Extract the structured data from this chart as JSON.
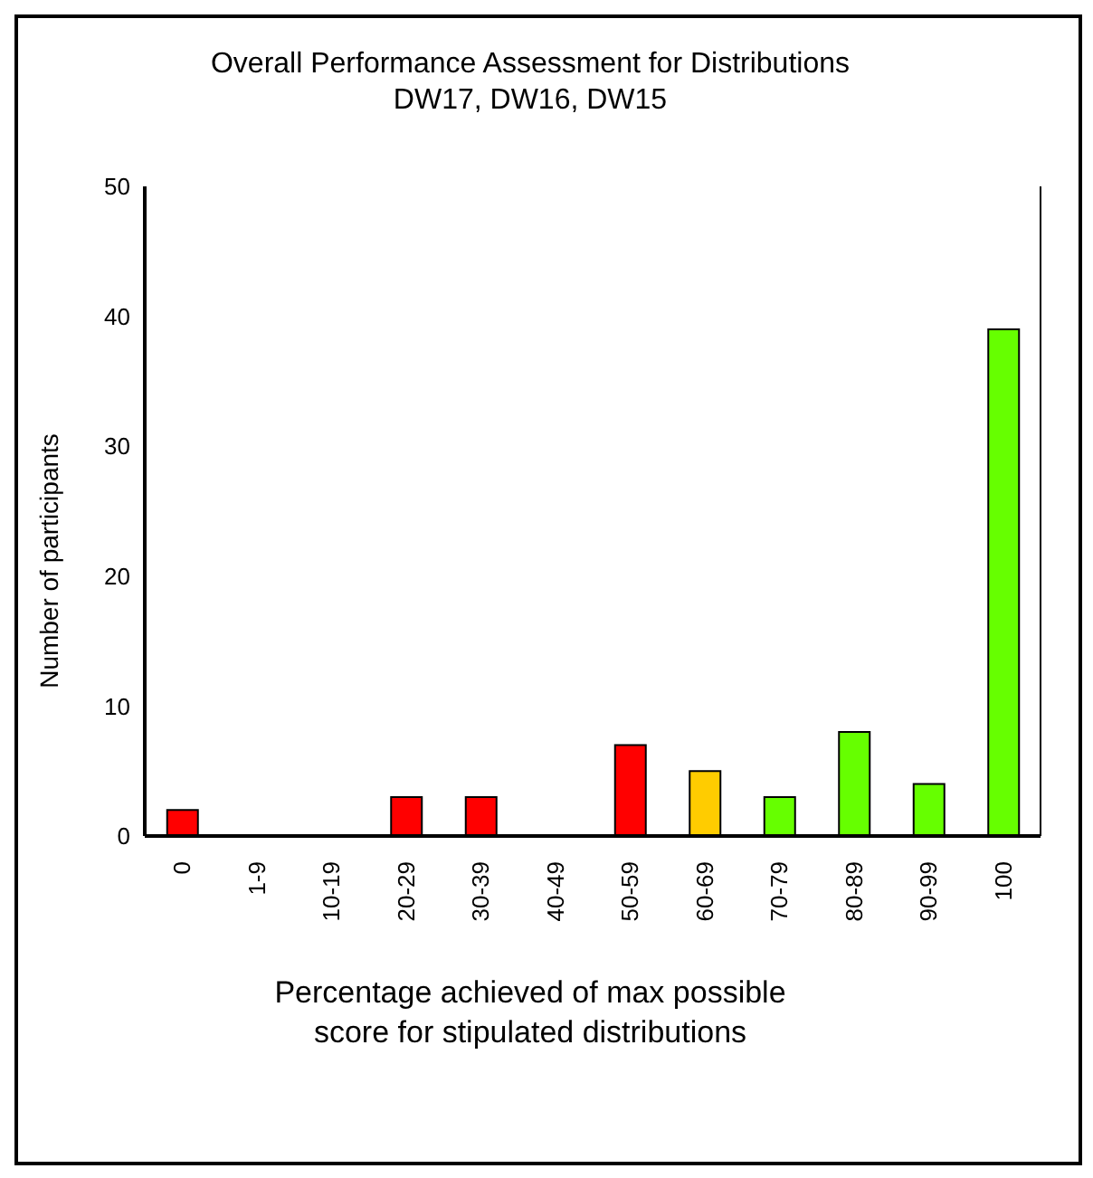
{
  "chart_data": {
    "type": "bar",
    "title": "Overall Performance Assessment for Distributions\nDW17, DW16, DW15",
    "xlabel": "Percentage achieved of max possible\nscore for stipulated distributions",
    "ylabel": "Number of participants",
    "categories": [
      "0",
      "1-9",
      "10-19",
      "20-29",
      "30-39",
      "40-49",
      "50-59",
      "60-69",
      "70-79",
      "80-89",
      "90-99",
      "100"
    ],
    "values": [
      2,
      0,
      0,
      3,
      3,
      0,
      7,
      5,
      3,
      8,
      4,
      39
    ],
    "colors": [
      "#ff0000",
      "#ff0000",
      "#ff0000",
      "#ff0000",
      "#ff0000",
      "#ff0000",
      "#ff0000",
      "#ffcc00",
      "#66ff00",
      "#66ff00",
      "#66ff00",
      "#66ff00"
    ],
    "ylim": [
      0,
      50
    ],
    "yticks": [
      0,
      10,
      20,
      30,
      40,
      50
    ],
    "grid": false,
    "legend": false
  }
}
